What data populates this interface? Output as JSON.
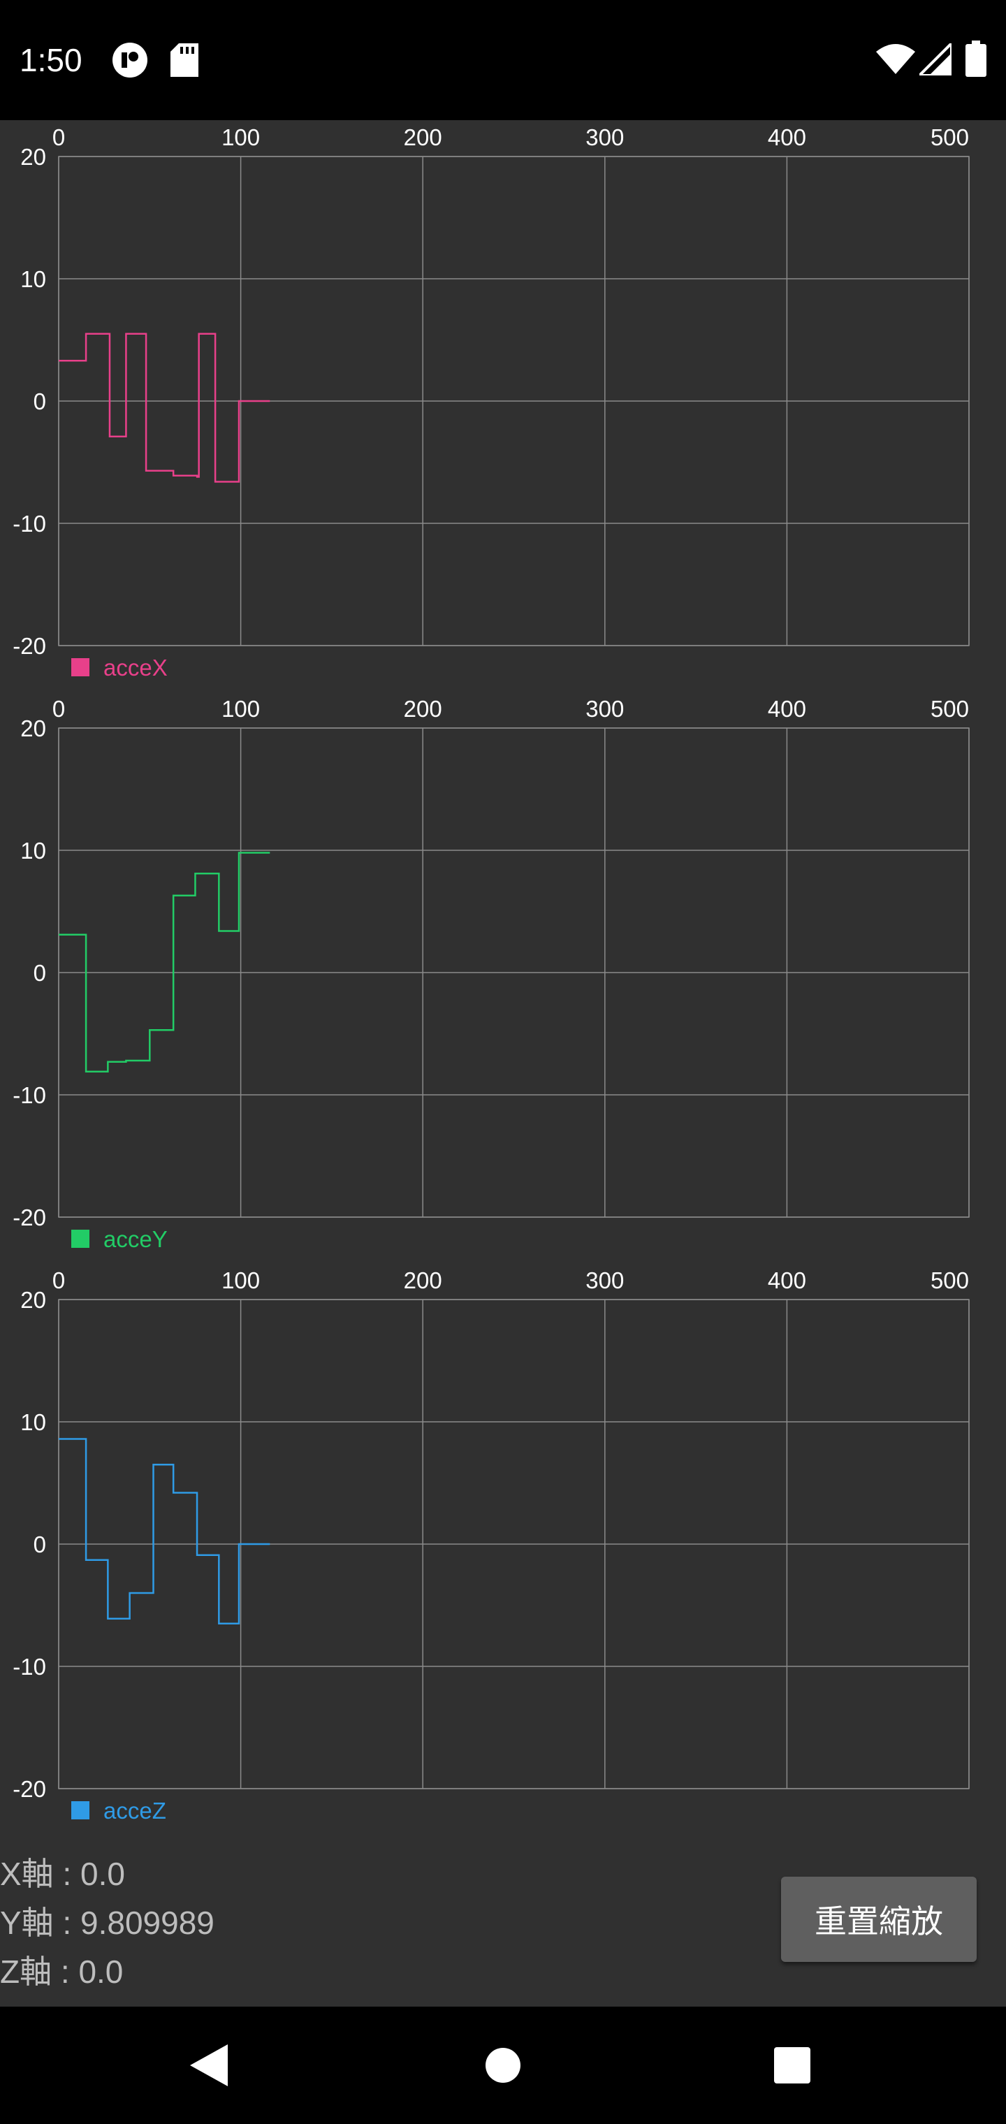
{
  "status_bar": {
    "time": "1:50",
    "icons": [
      "app-notification-icon",
      "sd-card-icon",
      "wifi-icon",
      "cellular-signal-icon",
      "battery-icon"
    ]
  },
  "chart_data": [
    {
      "type": "line",
      "title": "",
      "xlabel": "",
      "ylabel": "",
      "xlim": [
        0,
        500
      ],
      "ylim": [
        -20,
        20
      ],
      "x_ticks": [
        0,
        100,
        200,
        300,
        400,
        500
      ],
      "y_ticks": [
        20,
        10,
        0,
        -10,
        -20
      ],
      "grid": true,
      "legend_position": "bottom-left",
      "series": [
        {
          "name": "acceX",
          "color": "#e8408a",
          "step": true,
          "x": [
            0,
            15,
            28,
            37,
            48,
            52,
            63,
            64,
            76,
            77,
            86,
            88,
            96,
            99,
            100,
            116
          ],
          "y": [
            3.3,
            5.5,
            -2.9,
            5.5,
            -5.7,
            -5.7,
            -6.1,
            -6.1,
            -6.2,
            5.5,
            -6.6,
            -6.6,
            -6.6,
            0.0,
            0.0,
            0.0
          ]
        }
      ]
    },
    {
      "type": "line",
      "title": "",
      "xlabel": "",
      "ylabel": "",
      "xlim": [
        0,
        500
      ],
      "ylim": [
        -20,
        20
      ],
      "x_ticks": [
        0,
        100,
        200,
        300,
        400,
        500
      ],
      "y_ticks": [
        20,
        10,
        0,
        -10,
        -20
      ],
      "grid": true,
      "legend_position": "bottom-left",
      "series": [
        {
          "name": "acceY",
          "color": "#22cc66",
          "step": true,
          "x": [
            0,
            15,
            27,
            37,
            50,
            63,
            64,
            75,
            76,
            88,
            99,
            100,
            116
          ],
          "y": [
            3.1,
            -8.1,
            -7.3,
            -7.2,
            -4.7,
            6.3,
            6.3,
            8.1,
            8.1,
            3.4,
            9.8,
            9.8,
            9.8
          ]
        }
      ]
    },
    {
      "type": "line",
      "title": "",
      "xlabel": "",
      "ylabel": "",
      "xlim": [
        0,
        500
      ],
      "ylim": [
        -20,
        20
      ],
      "x_ticks": [
        0,
        100,
        200,
        300,
        400,
        500
      ],
      "y_ticks": [
        20,
        10,
        0,
        -10,
        -20
      ],
      "grid": true,
      "legend_position": "bottom-left",
      "series": [
        {
          "name": "acceZ",
          "color": "#2f9be6",
          "step": true,
          "x": [
            0,
            15,
            27,
            39,
            52,
            63,
            76,
            88,
            99,
            116
          ],
          "y": [
            8.6,
            -1.3,
            -6.1,
            -4.0,
            6.5,
            4.2,
            -0.9,
            -6.5,
            0.0,
            0.0
          ]
        }
      ]
    }
  ],
  "readouts": {
    "x_axis": "X軸 : 0.0",
    "y_axis": "Y軸 : 9.809989",
    "z_axis": "Z軸 : 0.0"
  },
  "reset_button": {
    "label": "重置縮放"
  },
  "colors": {
    "background": "#303030",
    "grid": "#8a8a8a",
    "axis_text": "#ffffff",
    "button": "#5f5f5f"
  }
}
